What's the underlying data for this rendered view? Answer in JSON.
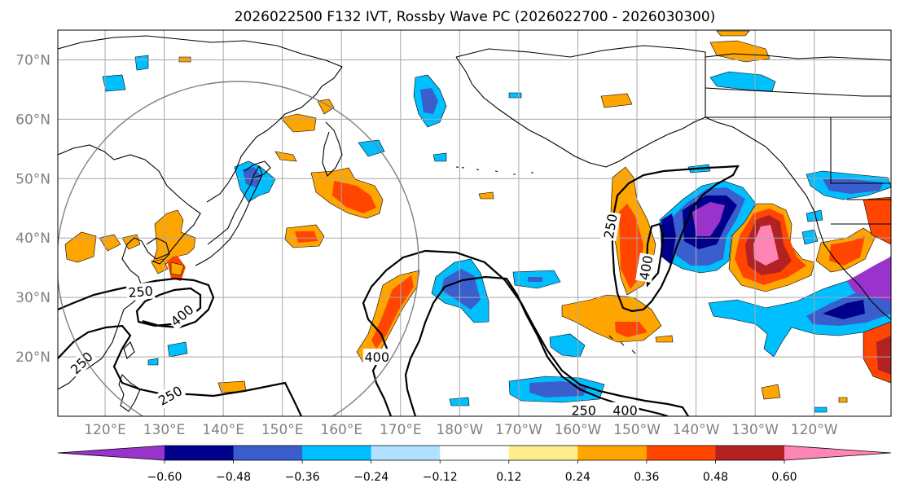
{
  "title": "2026022500 F132 IVT, Rossby Wave PC (2026022700 - 2026030300)",
  "map": {
    "lat_labels": [
      "70°N",
      "60°N",
      "50°N",
      "40°N",
      "30°N",
      "20°N"
    ],
    "lat_values": [
      70,
      60,
      50,
      40,
      30,
      20
    ],
    "lon_labels": [
      "120°E",
      "130°E",
      "140°E",
      "150°E",
      "160°E",
      "170°E",
      "180°W",
      "170°W",
      "160°W",
      "150°W",
      "140°W",
      "130°W",
      "120°W"
    ],
    "lon_values": [
      120,
      130,
      140,
      150,
      160,
      170,
      180,
      190,
      200,
      210,
      220,
      230,
      240
    ],
    "lat_range": [
      10,
      75
    ],
    "lon_range": [
      112,
      253
    ],
    "grid": true,
    "contour_labels": [
      {
        "text": "250",
        "lon": 126,
        "lat": 31,
        "angle": -5
      },
      {
        "text": "400",
        "lon": 133,
        "lat": 27,
        "angle": -40
      },
      {
        "text": "250",
        "lon": 116,
        "lat": 19,
        "angle": -45
      },
      {
        "text": "250",
        "lon": 131,
        "lat": 13.5,
        "angle": -30
      },
      {
        "text": "400",
        "lon": 166,
        "lat": 20,
        "angle": 0
      },
      {
        "text": "250",
        "lon": 201,
        "lat": 11,
        "angle": 0
      },
      {
        "text": "400",
        "lon": 208,
        "lat": 11,
        "angle": 0
      },
      {
        "text": "250",
        "lon": 205.5,
        "lat": 42,
        "angle": -80
      },
      {
        "text": "400",
        "lon": 211.5,
        "lat": 35,
        "angle": -80
      }
    ]
  },
  "colorbar": {
    "tick_labels": [
      "−0.60",
      "−0.48",
      "−0.36",
      "−0.24",
      "−0.12",
      "0.12",
      "0.24",
      "0.36",
      "0.48",
      "0.60"
    ],
    "levels": [
      -0.6,
      -0.48,
      -0.36,
      -0.24,
      -0.12,
      0.12,
      0.24,
      0.36,
      0.48,
      0.6
    ],
    "colors": [
      "#9933cc",
      "#00008b",
      "#3a5fcd",
      "#00bfff",
      "#b0e2ff",
      "#ffffff",
      "#ffec8b",
      "#ffa500",
      "#ff4500",
      "#b22222",
      "#ff86b4"
    ],
    "extend": "both"
  }
}
